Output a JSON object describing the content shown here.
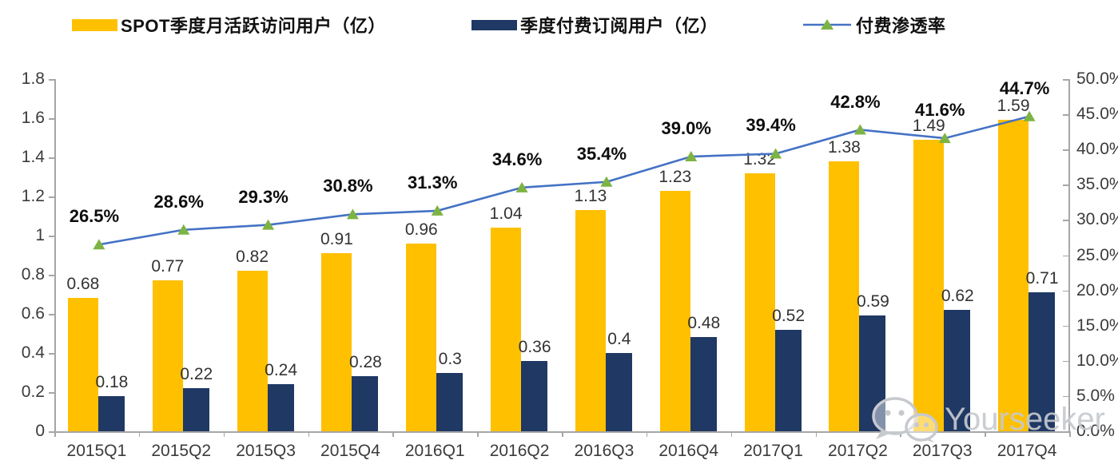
{
  "legend": {
    "items": [
      {
        "label": "SPOT季度月活跃访问用户（亿）",
        "swatch": "bar",
        "color": "#FFC000"
      },
      {
        "label": "季度付费订阅用户（亿）",
        "swatch": "bar",
        "color": "#1F3864"
      },
      {
        "label": "付费渗透率",
        "swatch": "line-marker",
        "line_color": "#4472C4",
        "marker_color": "#7DB343"
      }
    ]
  },
  "chart_data": {
    "type": "bar",
    "subtype": "combo-dual-axis-bar-line",
    "title": "",
    "categories": [
      "2015Q1",
      "2015Q2",
      "2015Q3",
      "2015Q4",
      "2016Q1",
      "2016Q2",
      "2016Q3",
      "2016Q4",
      "2017Q1",
      "2017Q2",
      "2017Q3",
      "2017Q4"
    ],
    "series": [
      {
        "name": "SPOT季度月活跃访问用户（亿）",
        "type": "bar",
        "axis": "left",
        "color": "#FFC000",
        "values": [
          0.68,
          0.77,
          0.82,
          0.91,
          0.96,
          1.04,
          1.13,
          1.23,
          1.32,
          1.38,
          1.49,
          1.59
        ],
        "labels": [
          "0.68",
          "0.77",
          "0.82",
          "0.91",
          "0.96",
          "1.04",
          "1.13",
          "1.23",
          "1.32",
          "1.38",
          "1.49",
          "1.59"
        ]
      },
      {
        "name": "季度付费订阅用户（亿）",
        "type": "bar",
        "axis": "left",
        "color": "#1F3864",
        "values": [
          0.18,
          0.22,
          0.24,
          0.28,
          0.3,
          0.36,
          0.4,
          0.48,
          0.52,
          0.59,
          0.62,
          0.71
        ],
        "labels": [
          "0.18",
          "0.22",
          "0.24",
          "0.28",
          "0.3",
          "0.36",
          "0.4",
          "0.48",
          "0.52",
          "0.59",
          "0.62",
          "0.71"
        ]
      },
      {
        "name": "付费渗透率",
        "type": "line",
        "axis": "right",
        "color": "#4472C4",
        "marker": "triangle",
        "marker_color": "#7DB343",
        "values": [
          26.5,
          28.6,
          29.3,
          30.8,
          31.3,
          34.6,
          35.4,
          39.0,
          39.4,
          42.8,
          41.6,
          44.7
        ],
        "labels": [
          "26.5%",
          "28.6%",
          "29.3%",
          "30.8%",
          "31.3%",
          "34.6%",
          "35.4%",
          "39.0%",
          "39.4%",
          "42.8%",
          "41.6%",
          "44.7%"
        ]
      }
    ],
    "left_axis": {
      "min": 0,
      "max": 1.8,
      "ticks": [
        "1.8",
        "1.6",
        "1.4",
        "1.2",
        "1",
        "0.8",
        "0.6",
        "0.4",
        "0.2",
        "0"
      ]
    },
    "right_axis": {
      "min": 0,
      "max": 50,
      "ticks": [
        "50.0%",
        "45.0%",
        "40.0%",
        "35.0%",
        "30.0%",
        "25.0%",
        "20.0%",
        "15.0%",
        "10.0%",
        "5.0%",
        "0.0%"
      ]
    },
    "xlabel": "",
    "ylabel": "",
    "grid": false,
    "legend_position": "top",
    "axis_color": "#a6a6a6"
  },
  "watermark": {
    "text": "Yourseeker",
    "icon": "wechat-icon"
  }
}
